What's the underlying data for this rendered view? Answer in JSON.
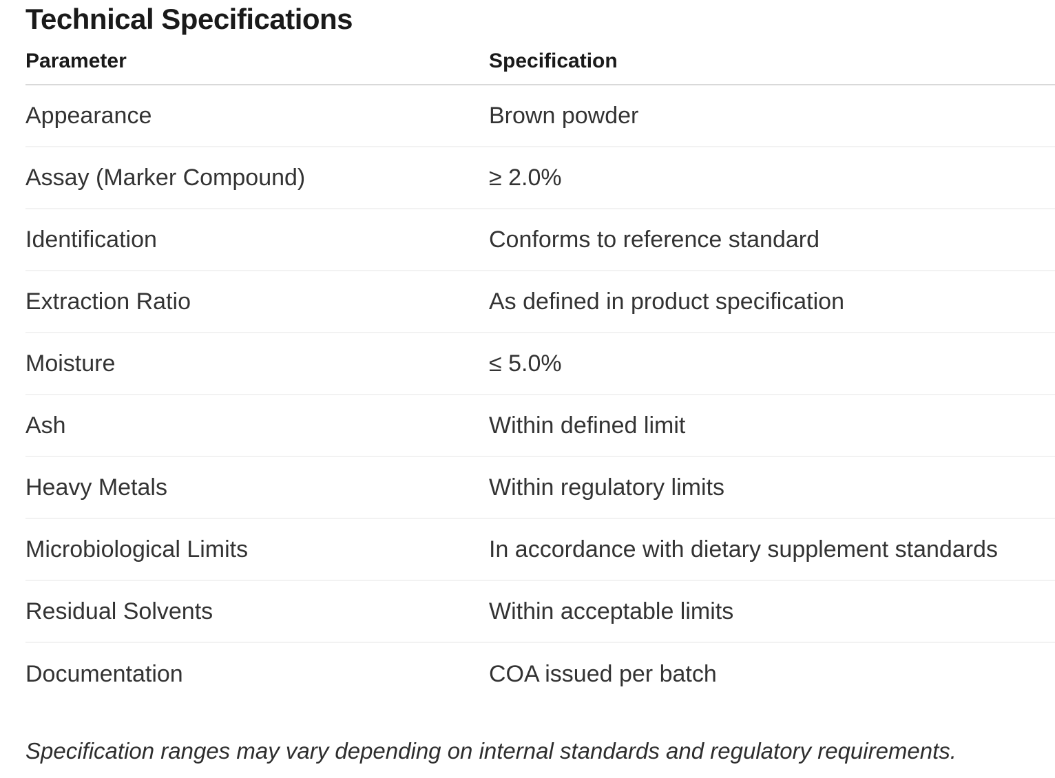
{
  "page": {
    "title": "Technical Specifications",
    "footnote": "Specification ranges may vary depending on internal standards and regulatory requirements."
  },
  "table": {
    "columns": [
      "Parameter",
      "Specification"
    ],
    "rows": [
      {
        "parameter": "Appearance",
        "specification": "Brown powder"
      },
      {
        "parameter": "Assay (Marker Compound)",
        "specification": "≥ 2.0%"
      },
      {
        "parameter": "Identification",
        "specification": "Conforms to reference standard"
      },
      {
        "parameter": "Extraction Ratio",
        "specification": "As defined in product specification"
      },
      {
        "parameter": "Moisture",
        "specification": "≤ 5.0%"
      },
      {
        "parameter": "Ash",
        "specification": "Within defined limit"
      },
      {
        "parameter": "Heavy Metals",
        "specification": "Within regulatory limits"
      },
      {
        "parameter": "Microbiological Limits",
        "specification": "In accordance with dietary supplement standards"
      },
      {
        "parameter": "Residual Solvents",
        "specification": "Within acceptable limits"
      },
      {
        "parameter": "Documentation",
        "specification": "COA issued per batch"
      }
    ]
  },
  "colors": {
    "title_text": "#1a1a1a",
    "body_text": "#333333",
    "header_divider": "#d9d9d9",
    "row_divider": "#f2f2f2",
    "background": "#ffffff"
  }
}
